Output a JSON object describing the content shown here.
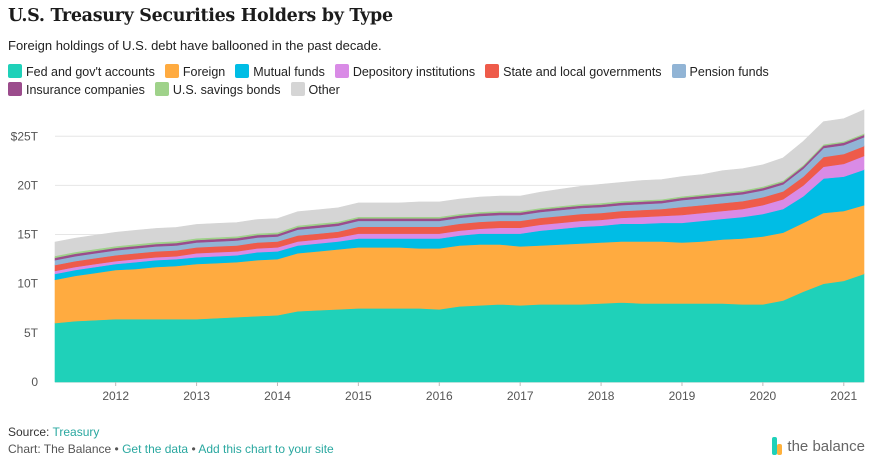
{
  "header": {
    "title": "U.S. Treasury Securities Holders by Type",
    "subtitle": "Foreign holdings of U.S. debt have ballooned in the past decade."
  },
  "footer": {
    "source_label": "Source:",
    "source_link": "Treasury",
    "chart_credit": "Chart: The Balance",
    "separator": "•",
    "get_data": "Get the data",
    "add_chart": "Add this chart to your site",
    "brand": "the balance"
  },
  "chart_data": {
    "type": "area",
    "stacked": true,
    "title": "U.S. Treasury Securities Holders by Type",
    "subtitle": "Foreign holdings of U.S. debt have ballooned in the past decade.",
    "xlabel": "",
    "ylabel": "",
    "x_tick_labels": [
      "2012",
      "2013",
      "2014",
      "2015",
      "2016",
      "2017",
      "2018",
      "2019",
      "2020",
      "2021"
    ],
    "y_tick_labels": [
      "0",
      "5T",
      "10T",
      "15T",
      "20T",
      "$25T"
    ],
    "ylim": [
      0,
      27
    ],
    "grid": "horizontal",
    "legend_position": "top",
    "x": [
      "2011 Q1",
      "2011 Q2",
      "2011 Q3",
      "2011 Q4",
      "2012 Q1",
      "2012 Q2",
      "2012 Q3",
      "2012 Q4",
      "2013 Q1",
      "2013 Q2",
      "2013 Q3",
      "2013 Q4",
      "2014 Q1",
      "2014 Q2",
      "2014 Q3",
      "2014 Q4",
      "2015 Q1",
      "2015 Q2",
      "2015 Q3",
      "2015 Q4",
      "2016 Q1",
      "2016 Q2",
      "2016 Q3",
      "2016 Q4",
      "2017 Q1",
      "2017 Q2",
      "2017 Q3",
      "2017 Q4",
      "2018 Q1",
      "2018 Q2",
      "2018 Q3",
      "2018 Q4",
      "2019 Q1",
      "2019 Q2",
      "2019 Q3",
      "2019 Q4",
      "2020 Q1",
      "2020 Q2",
      "2020 Q3",
      "2020 Q4",
      "2021 Q1"
    ],
    "series": [
      {
        "name": "Fed and gov't accounts",
        "color": "#1fd1b9",
        "values": [
          6.0,
          6.2,
          6.3,
          6.4,
          6.4,
          6.4,
          6.4,
          6.4,
          6.5,
          6.6,
          6.7,
          6.8,
          7.2,
          7.3,
          7.4,
          7.5,
          7.5,
          7.5,
          7.5,
          7.4,
          7.7,
          7.8,
          7.9,
          7.8,
          7.9,
          7.9,
          7.9,
          8.0,
          8.1,
          8.0,
          8.0,
          8.0,
          8.0,
          8.0,
          7.9,
          7.9,
          8.3,
          9.2,
          10.0,
          10.3,
          11.0
        ]
      },
      {
        "name": "Foreign",
        "color": "#ffab40",
        "values": [
          4.4,
          4.6,
          4.8,
          5.0,
          5.1,
          5.3,
          5.4,
          5.6,
          5.6,
          5.6,
          5.7,
          5.7,
          5.9,
          6.0,
          6.1,
          6.2,
          6.2,
          6.2,
          6.1,
          6.2,
          6.2,
          6.2,
          6.1,
          6.0,
          6.0,
          6.1,
          6.2,
          6.2,
          6.2,
          6.3,
          6.3,
          6.2,
          6.3,
          6.5,
          6.7,
          6.9,
          6.9,
          7.0,
          7.2,
          7.1,
          7.0
        ]
      },
      {
        "name": "Mutual funds",
        "color": "#00bde5",
        "values": [
          0.6,
          0.6,
          0.6,
          0.6,
          0.7,
          0.7,
          0.7,
          0.7,
          0.7,
          0.7,
          0.8,
          0.8,
          0.8,
          0.8,
          0.8,
          0.9,
          0.9,
          0.9,
          1.0,
          1.0,
          1.0,
          1.1,
          1.1,
          1.3,
          1.5,
          1.6,
          1.7,
          1.7,
          1.8,
          1.8,
          1.9,
          2.0,
          2.1,
          2.1,
          2.2,
          2.3,
          2.4,
          2.7,
          3.5,
          3.5,
          3.6
        ]
      },
      {
        "name": "Depository institutions",
        "color": "#d98be6",
        "values": [
          0.3,
          0.3,
          0.3,
          0.3,
          0.3,
          0.3,
          0.3,
          0.4,
          0.4,
          0.4,
          0.4,
          0.4,
          0.4,
          0.4,
          0.4,
          0.5,
          0.5,
          0.5,
          0.5,
          0.5,
          0.5,
          0.5,
          0.6,
          0.6,
          0.6,
          0.6,
          0.6,
          0.6,
          0.6,
          0.7,
          0.7,
          0.8,
          0.8,
          0.8,
          0.8,
          0.9,
          1.0,
          1.1,
          1.2,
          1.3,
          1.4
        ]
      },
      {
        "name": "State and local governments",
        "color": "#ee5b4a",
        "values": [
          0.6,
          0.6,
          0.6,
          0.6,
          0.6,
          0.6,
          0.6,
          0.6,
          0.6,
          0.6,
          0.6,
          0.6,
          0.6,
          0.6,
          0.6,
          0.7,
          0.7,
          0.7,
          0.7,
          0.7,
          0.7,
          0.7,
          0.7,
          0.7,
          0.7,
          0.7,
          0.7,
          0.7,
          0.7,
          0.7,
          0.7,
          0.8,
          0.8,
          0.8,
          0.8,
          0.8,
          0.8,
          0.9,
          1.0,
          1.0,
          1.0
        ]
      },
      {
        "name": "Pension funds",
        "color": "#91b4d5",
        "values": [
          0.5,
          0.5,
          0.5,
          0.5,
          0.5,
          0.5,
          0.5,
          0.5,
          0.5,
          0.5,
          0.5,
          0.5,
          0.6,
          0.6,
          0.6,
          0.6,
          0.6,
          0.6,
          0.6,
          0.6,
          0.6,
          0.6,
          0.6,
          0.6,
          0.6,
          0.6,
          0.6,
          0.6,
          0.6,
          0.6,
          0.6,
          0.7,
          0.7,
          0.7,
          0.7,
          0.7,
          0.7,
          0.8,
          0.9,
          0.9,
          0.9
        ]
      },
      {
        "name": "Insurance companies",
        "color": "#9b4c8c",
        "values": [
          0.25,
          0.25,
          0.25,
          0.25,
          0.25,
          0.25,
          0.25,
          0.25,
          0.25,
          0.25,
          0.25,
          0.25,
          0.25,
          0.25,
          0.25,
          0.25,
          0.25,
          0.25,
          0.25,
          0.25,
          0.25,
          0.25,
          0.25,
          0.25,
          0.25,
          0.25,
          0.25,
          0.25,
          0.25,
          0.25,
          0.25,
          0.25,
          0.25,
          0.25,
          0.25,
          0.25,
          0.25,
          0.25,
          0.25,
          0.25,
          0.25
        ]
      },
      {
        "name": "U.S. savings bonds",
        "color": "#9fd28a",
        "values": [
          0.18,
          0.18,
          0.18,
          0.18,
          0.18,
          0.18,
          0.18,
          0.18,
          0.18,
          0.18,
          0.18,
          0.18,
          0.17,
          0.17,
          0.17,
          0.17,
          0.17,
          0.17,
          0.17,
          0.17,
          0.16,
          0.16,
          0.16,
          0.16,
          0.16,
          0.16,
          0.16,
          0.16,
          0.16,
          0.15,
          0.15,
          0.15,
          0.15,
          0.15,
          0.15,
          0.15,
          0.15,
          0.14,
          0.14,
          0.14,
          0.14
        ]
      },
      {
        "name": "Other",
        "color": "#d5d5d5",
        "values": [
          1.4,
          1.4,
          1.4,
          1.4,
          1.4,
          1.4,
          1.4,
          1.4,
          1.4,
          1.4,
          1.4,
          1.4,
          1.4,
          1.4,
          1.4,
          1.4,
          1.4,
          1.4,
          1.5,
          1.5,
          1.5,
          1.5,
          1.5,
          1.5,
          1.6,
          1.7,
          1.8,
          1.9,
          1.9,
          2.0,
          2.0,
          2.0,
          2.0,
          2.2,
          2.2,
          2.2,
          2.3,
          2.4,
          2.3,
          2.3,
          2.4
        ]
      }
    ]
  }
}
